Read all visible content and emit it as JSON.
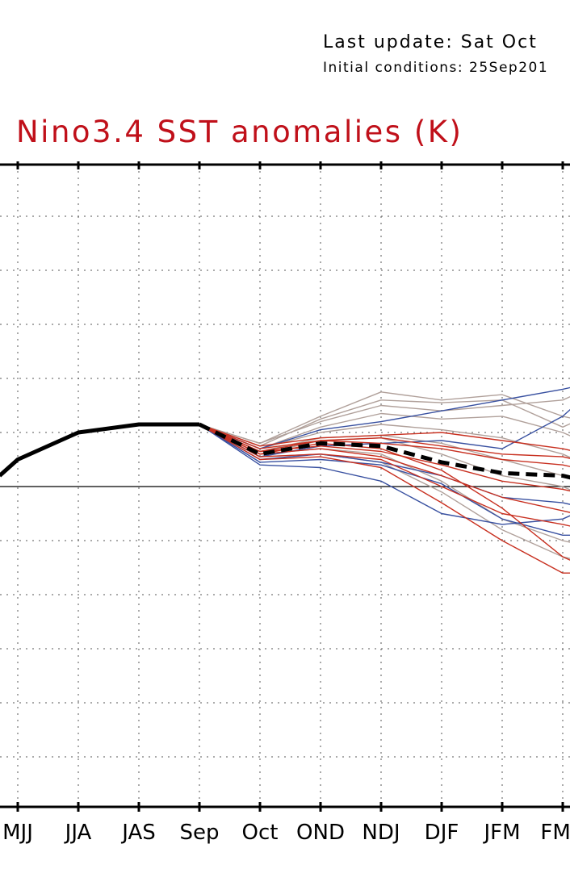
{
  "header": {
    "last_update": "Last update: Sat Oct",
    "initial_conditions": "Initial conditions: 25Sep201"
  },
  "chart_data": {
    "type": "line",
    "title": "Nino3.4 SST anomalies (K)",
    "xlabel": "",
    "ylabel": "",
    "categories": [
      "MJJ",
      "JJA",
      "JAS",
      "Sep",
      "Oct",
      "OND",
      "NDJ",
      "DJF",
      "JFM",
      "FMA"
    ],
    "grid": true,
    "legend": "none",
    "y_reference": 0,
    "y_unit_note": "relative anomaly; y tick labels cropped",
    "observed": {
      "color": "#000000",
      "style": "solid",
      "x": [
        -0.3,
        0,
        1,
        2,
        3
      ],
      "y": [
        0.2,
        0.5,
        1.0,
        1.15,
        1.15
      ]
    },
    "ensemble_mean": {
      "color": "#000000",
      "style": "dashed",
      "x": [
        3,
        4,
        5,
        6,
        7,
        8,
        9,
        9.2
      ],
      "y": [
        1.15,
        0.6,
        0.8,
        0.75,
        0.45,
        0.25,
        0.2,
        0.15
      ]
    },
    "members": [
      {
        "color": "#b0a09a",
        "x": [
          3,
          4,
          5,
          6,
          7,
          8,
          9,
          9.2
        ],
        "y": [
          1.15,
          0.8,
          1.3,
          1.75,
          1.6,
          1.7,
          1.3,
          1.25
        ]
      },
      {
        "color": "#b0a09a",
        "x": [
          3,
          4,
          5,
          6,
          7,
          8,
          9,
          9.2
        ],
        "y": [
          1.15,
          0.75,
          1.25,
          1.6,
          1.55,
          1.6,
          1.1,
          1.2
        ]
      },
      {
        "color": "#b0a09a",
        "x": [
          3,
          4,
          5,
          6,
          7,
          8,
          9,
          9.2
        ],
        "y": [
          1.15,
          0.8,
          1.2,
          1.5,
          1.4,
          1.5,
          1.6,
          1.7
        ]
      },
      {
        "color": "#b0a09a",
        "x": [
          3,
          4,
          5,
          6,
          7,
          8,
          9,
          9.2
        ],
        "y": [
          1.15,
          0.7,
          1.1,
          1.35,
          1.25,
          1.3,
          1.0,
          0.9
        ]
      },
      {
        "color": "#b0a09a",
        "x": [
          3,
          4,
          5,
          6,
          7,
          8,
          9,
          9.2
        ],
        "y": [
          1.15,
          0.7,
          1.0,
          1.15,
          1.05,
          0.9,
          0.6,
          0.5
        ]
      },
      {
        "color": "#b0a09a",
        "x": [
          3,
          4,
          5,
          6,
          7,
          8,
          9,
          9.2
        ],
        "y": [
          1.15,
          0.65,
          0.9,
          0.95,
          0.8,
          0.5,
          0.2,
          0.1
        ]
      },
      {
        "color": "#b0a09a",
        "x": [
          3,
          4,
          5,
          6,
          7,
          8,
          9,
          9.2
        ],
        "y": [
          1.15,
          0.6,
          0.7,
          0.6,
          0.1,
          -0.6,
          -1.0,
          -1.05
        ]
      },
      {
        "color": "#b0a09a",
        "x": [
          3,
          4,
          5,
          6,
          7,
          8,
          9,
          9.2
        ],
        "y": [
          1.15,
          0.55,
          0.6,
          0.45,
          -0.1,
          -0.8,
          -1.3,
          -1.35
        ]
      },
      {
        "color": "#b0a09a",
        "x": [
          3,
          4,
          5,
          6,
          7,
          8,
          9,
          9.2
        ],
        "y": [
          1.15,
          0.6,
          0.85,
          0.9,
          0.6,
          0.2,
          0.0,
          -0.1
        ]
      },
      {
        "color": "#3850a0",
        "x": [
          3,
          4,
          5,
          6,
          7,
          8,
          9,
          9.2
        ],
        "y": [
          1.15,
          0.7,
          1.05,
          1.2,
          1.4,
          1.6,
          1.8,
          1.85
        ]
      },
      {
        "color": "#3850a0",
        "x": [
          3,
          4,
          5,
          6,
          7,
          8,
          9,
          9.2
        ],
        "y": [
          1.15,
          0.55,
          0.75,
          0.8,
          0.85,
          0.7,
          1.3,
          1.5
        ]
      },
      {
        "color": "#3850a0",
        "x": [
          3,
          4,
          5,
          6,
          7,
          8,
          9,
          9.2
        ],
        "y": [
          1.15,
          0.45,
          0.5,
          0.4,
          0.05,
          -0.6,
          -0.9,
          -0.9
        ]
      },
      {
        "color": "#3850a0",
        "x": [
          3,
          4,
          5,
          6,
          7,
          8,
          9,
          9.2
        ],
        "y": [
          1.15,
          0.4,
          0.35,
          0.1,
          -0.5,
          -0.7,
          -0.6,
          -0.5
        ]
      },
      {
        "color": "#3850a0",
        "x": [
          3,
          4,
          5,
          6,
          7,
          8,
          9,
          9.2
        ],
        "y": [
          1.15,
          0.5,
          0.6,
          0.45,
          0.2,
          -0.2,
          -0.3,
          -0.35
        ]
      },
      {
        "color": "#c83020",
        "x": [
          3,
          4,
          5,
          6,
          7,
          8,
          9,
          9.2
        ],
        "y": [
          1.15,
          0.75,
          0.9,
          0.95,
          1.0,
          0.85,
          0.7,
          0.65
        ]
      },
      {
        "color": "#c83020",
        "x": [
          3,
          4,
          5,
          6,
          7,
          8,
          9,
          9.2
        ],
        "y": [
          1.15,
          0.7,
          0.85,
          0.8,
          0.7,
          0.5,
          0.4,
          0.35
        ]
      },
      {
        "color": "#c83020",
        "x": [
          3,
          4,
          5,
          6,
          7,
          8,
          9,
          9.2
        ],
        "y": [
          1.15,
          0.65,
          0.75,
          0.65,
          0.4,
          0.1,
          -0.05,
          -0.1
        ]
      },
      {
        "color": "#c83020",
        "x": [
          3,
          4,
          5,
          6,
          7,
          8,
          9,
          9.2
        ],
        "y": [
          1.15,
          0.6,
          0.7,
          0.55,
          0.2,
          -0.2,
          -0.45,
          -0.5
        ]
      },
      {
        "color": "#c83020",
        "x": [
          3,
          4,
          5,
          6,
          7,
          8,
          9,
          9.2
        ],
        "y": [
          1.15,
          0.55,
          0.6,
          0.5,
          0.0,
          -0.5,
          -0.7,
          -0.75
        ]
      },
      {
        "color": "#c83020",
        "x": [
          3,
          4,
          5,
          6,
          7,
          8,
          9,
          9.2
        ],
        "y": [
          1.15,
          0.5,
          0.55,
          0.35,
          -0.3,
          -1.0,
          -1.6,
          -1.6
        ]
      },
      {
        "color": "#c83020",
        "x": [
          3,
          4,
          5,
          6,
          7,
          8,
          9,
          9.2
        ],
        "y": [
          1.15,
          0.6,
          0.8,
          0.7,
          0.3,
          -0.4,
          -1.3,
          -1.4
        ]
      },
      {
        "color": "#c83020",
        "x": [
          3,
          4,
          5,
          6,
          7,
          8,
          9,
          9.2
        ],
        "y": [
          1.15,
          0.65,
          0.85,
          0.9,
          0.75,
          0.6,
          0.55,
          0.5
        ]
      }
    ]
  }
}
